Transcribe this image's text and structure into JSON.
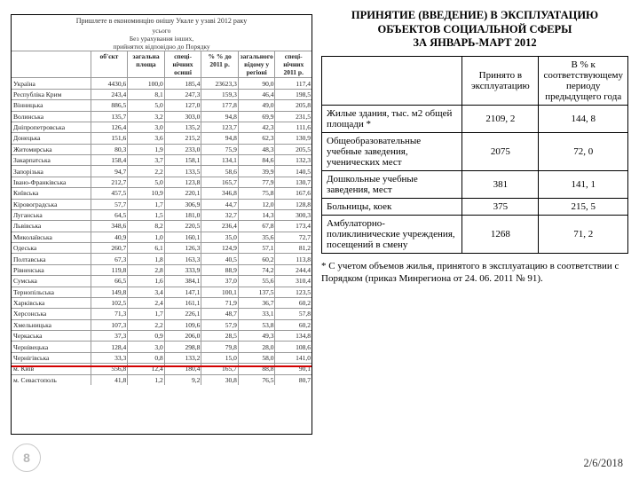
{
  "left": {
    "title": "Пришлете в економинцію онішу Укале у узаві 2012 раку",
    "subtitle": "усього",
    "sub2": "Без урахування інших,",
    "sub3": "прийнятих відповідно до Порядку",
    "head": [
      "",
      "об'єкт",
      "загальна площа",
      "спеці-нічних осиші",
      "% % до 2011 р.",
      "загального відому у регіоні",
      "спеці-нічних 2011 р."
    ],
    "rows": [
      [
        "Україна",
        "4430,6",
        "100,0",
        "185,4",
        "23623,3",
        "90,0",
        "117,4"
      ],
      [
        "Республіка Крим",
        "243,4",
        "8,1",
        "247,3",
        "159,3",
        "46,4",
        "198,5"
      ],
      [
        "Вінницька",
        "886,5",
        "5,0",
        "127,0",
        "177,8",
        "49,0",
        "205,8"
      ],
      [
        "Волинська",
        "135,7",
        "3,2",
        "303,0",
        "94,8",
        "69,9",
        "231,5"
      ],
      [
        "Дніпропетровська",
        "126,4",
        "3,0",
        "135,2",
        "123,7",
        "42,3",
        "111,6"
      ],
      [
        "Донецька",
        "151,6",
        "3,6",
        "215,2",
        "94,8",
        "62,3",
        "130,9"
      ],
      [
        "Житомирська",
        "80,3",
        "1,9",
        "233,0",
        "75,9",
        "48,3",
        "205,5"
      ],
      [
        "Закарпатська",
        "158,4",
        "3,7",
        "158,1",
        "134,1",
        "84,6",
        "132,3"
      ],
      [
        "Запорізька",
        "94,7",
        "2,2",
        "133,5",
        "58,6",
        "39,9",
        "140,5"
      ],
      [
        "Івано-Франківська",
        "212,7",
        "5,0",
        "123,8",
        "165,7",
        "77,9",
        "130,7"
      ],
      [
        "Київська",
        "457,5",
        "10,9",
        "220,1",
        "346,8",
        "75,8",
        "167,6"
      ],
      [
        "Кіровоградська",
        "57,7",
        "1,7",
        "306,9",
        "44,7",
        "12,0",
        "128,8"
      ],
      [
        "Луганська",
        "64,5",
        "1,5",
        "181,0",
        "32,7",
        "14,3",
        "300,3"
      ],
      [
        "Львівська",
        "348,6",
        "8,2",
        "220,5",
        "236,4",
        "67,8",
        "173,4"
      ],
      [
        "Миколаївська",
        "40,9",
        "1,0",
        "160,1",
        "35,0",
        "35,6",
        "72,7"
      ],
      [
        "Одеська",
        "260,7",
        "6,1",
        "126,3",
        "124,9",
        "57,1",
        "81,2"
      ],
      [
        "Полтавська",
        "67,3",
        "1,8",
        "163,3",
        "40,5",
        "60,2",
        "113,8"
      ],
      [
        "Рівненська",
        "119,8",
        "2,8",
        "333,9",
        "88,9",
        "74,2",
        "244,4"
      ],
      [
        "Сумська",
        "66,5",
        "1,6",
        "384,1",
        "37,0",
        "55,6",
        "310,4"
      ],
      [
        "Тернопільська",
        "149,8",
        "3,4",
        "147,1",
        "100,1",
        "137,5",
        "123,5"
      ],
      [
        "Харківська",
        "102,5",
        "2,4",
        "161,1",
        "71,9",
        "36,7",
        "60,2"
      ],
      [
        "Херсонська",
        "71,3",
        "1,7",
        "226,1",
        "48,7",
        "33,1",
        "57,8"
      ],
      [
        "Хмельницька",
        "107,3",
        "2,2",
        "109,6",
        "57,9",
        "53,8",
        "60,2"
      ],
      [
        "Черкаська",
        "37,3",
        "0,9",
        "206,0",
        "28,5",
        "49,3",
        "134,8"
      ],
      [
        "Чернівецька",
        "128,4",
        "3,0",
        "298,8",
        "79,8",
        "28,0",
        "108,6"
      ],
      [
        "Чернігівська",
        "33,3",
        "0,8",
        "133,2",
        "15,0",
        "58,0",
        "141,0"
      ],
      [
        "м. Київ",
        "556,8",
        "12,4",
        "180,4",
        "165,7",
        "88,8",
        "90,1"
      ],
      [
        "м. Севастополь",
        "41,8",
        "1,2",
        "9,2",
        "30,8",
        "76,5",
        "80,7"
      ]
    ]
  },
  "right": {
    "title_l1": "ПРИНЯТИЕ (ВВЕДЕНИЕ) В ЭКСПЛУАТАЦИЮ",
    "title_l2": "ОБЪЕКТОВ СОЦИАЛЬНОЙ СФЕРЫ",
    "title_l3": "ЗА ЯНВАРЬ-МАРТ 2012",
    "h_accept": "Принято в эксплуатацию",
    "h_pct": "В % к соответствующему периоду предыдущего года",
    "rows": [
      {
        "label": "Жилые здания, тыс. м2 общей площади *",
        "v1": "2109, 2",
        "v2": "144, 8"
      },
      {
        "label": "Общеобразовательные учебные заведения, ученических мест",
        "v1": "2075",
        "v2": "72, 0"
      },
      {
        "label": "Дошкольные учебные заведения, мест",
        "v1": "381",
        "v2": "141, 1"
      },
      {
        "label": "Больницы, коек",
        "v1": "375",
        "v2": "215, 5"
      },
      {
        "label": "Амбулаторно-поликлинические учреждения, посещений в смену",
        "v1": "1268",
        "v2": "71, 2"
      }
    ],
    "footnote": "* С учетом объемов жилья, принятого в эксплуатацию в соответствии с Порядком (приказ Минрегиона от 24. 06. 2011 № 91)."
  },
  "page_number": "8",
  "date": "2/6/2018"
}
